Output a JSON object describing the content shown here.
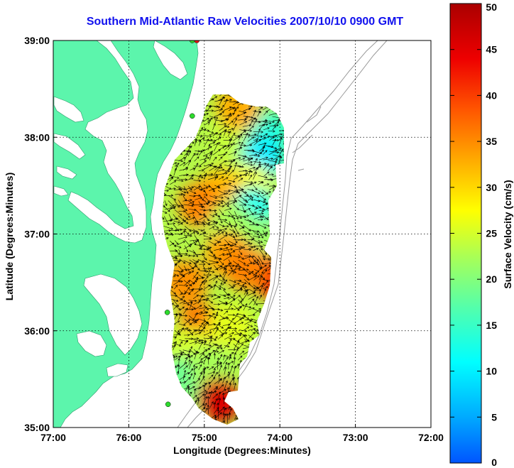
{
  "title": "Southern Mid-Atlantic Raw Velocities 2007/10/10 0900 GMT",
  "xlabel": "Longitude (Degrees:Minutes)",
  "ylabel": "Latitude (Degrees:Minutes)",
  "colorbar_label": "Surface Velocity (cm/s)",
  "x_ticks": [
    {
      "value": -77,
      "label": "77:00"
    },
    {
      "value": -76,
      "label": "76:00"
    },
    {
      "value": -75,
      "label": "75:00"
    },
    {
      "value": -74,
      "label": "74:00"
    },
    {
      "value": -73,
      "label": "73:00"
    },
    {
      "value": -72,
      "label": "72:00"
    }
  ],
  "y_ticks": [
    {
      "value": 39,
      "label": "39:00"
    },
    {
      "value": 38,
      "label": "38:00"
    },
    {
      "value": 37,
      "label": "37:00"
    },
    {
      "value": 36,
      "label": "36:00"
    },
    {
      "value": 35,
      "label": "35:00"
    }
  ],
  "colorbar_ticks": [
    {
      "value": 50,
      "label": "50"
    },
    {
      "value": 45,
      "label": "45"
    },
    {
      "value": 40,
      "label": "40"
    },
    {
      "value": 35,
      "label": "35"
    },
    {
      "value": 30,
      "label": "30"
    },
    {
      "value": 25,
      "label": "25"
    },
    {
      "value": 20,
      "label": "20"
    },
    {
      "value": 15,
      "label": "15"
    },
    {
      "value": 10,
      "label": "10"
    },
    {
      "value": 5,
      "label": "5"
    },
    {
      "value": 0,
      "label": "0"
    }
  ],
  "chart_data": {
    "type": "heatmap",
    "xlim": [
      -77,
      -72
    ],
    "ylim": [
      35,
      39
    ],
    "clim": [
      0,
      50
    ],
    "grid": true,
    "colors": {
      "land": "#5cf5ac",
      "water": "#ffffff",
      "site": "#2ddb2d",
      "site_highlight": "#ee1111",
      "bathymetry": "#9a9a9a",
      "vector": "#000000"
    },
    "colormap": [
      "#0055ff",
      "#00aaff",
      "#00ffff",
      "#55ffaa",
      "#aaff55",
      "#ffff00",
      "#ffaa00",
      "#ff5500",
      "#ee0000",
      "#aa0000"
    ],
    "sites": [
      {
        "lon": -75.1,
        "lat": 39.0,
        "color": "site_highlight"
      },
      {
        "lon": -75.16,
        "lat": 39.0,
        "color": "site"
      },
      {
        "lon": -75.16,
        "lat": 38.22,
        "color": "site"
      },
      {
        "lon": -75.49,
        "lat": 36.19,
        "color": "site"
      },
      {
        "lon": -75.48,
        "lat": 35.24,
        "color": "site"
      }
    ],
    "velocity_regions": [
      {
        "lon": -74.65,
        "lat": 37.98,
        "speed": 24
      },
      {
        "lon": -74.15,
        "lat": 38.05,
        "speed": 14
      },
      {
        "lon": -74.55,
        "lat": 38.3,
        "speed": 33
      },
      {
        "lon": -74.22,
        "lat": 37.78,
        "speed": 10
      },
      {
        "lon": -74.4,
        "lat": 37.5,
        "speed": 27
      },
      {
        "lon": -74.78,
        "lat": 37.45,
        "speed": 32
      },
      {
        "lon": -75.05,
        "lat": 37.3,
        "speed": 36
      },
      {
        "lon": -74.35,
        "lat": 37.25,
        "speed": 12
      },
      {
        "lon": -74.65,
        "lat": 37.1,
        "speed": 22
      },
      {
        "lon": -74.3,
        "lat": 36.95,
        "speed": 21
      },
      {
        "lon": -74.7,
        "lat": 36.8,
        "speed": 34
      },
      {
        "lon": -74.05,
        "lat": 36.55,
        "speed": 43
      },
      {
        "lon": -74.45,
        "lat": 36.65,
        "speed": 36
      },
      {
        "lon": -75.25,
        "lat": 36.5,
        "speed": 35
      },
      {
        "lon": -75.05,
        "lat": 36.05,
        "speed": 37
      },
      {
        "lon": -75.2,
        "lat": 35.8,
        "speed": 25
      },
      {
        "lon": -74.65,
        "lat": 36.05,
        "speed": 26
      },
      {
        "lon": -75.3,
        "lat": 35.5,
        "speed": 18
      },
      {
        "lon": -74.9,
        "lat": 35.62,
        "speed": 22
      },
      {
        "lon": -74.8,
        "lat": 35.28,
        "speed": 46
      },
      {
        "lon": -75.38,
        "lat": 35.2,
        "speed": 20
      }
    ]
  }
}
